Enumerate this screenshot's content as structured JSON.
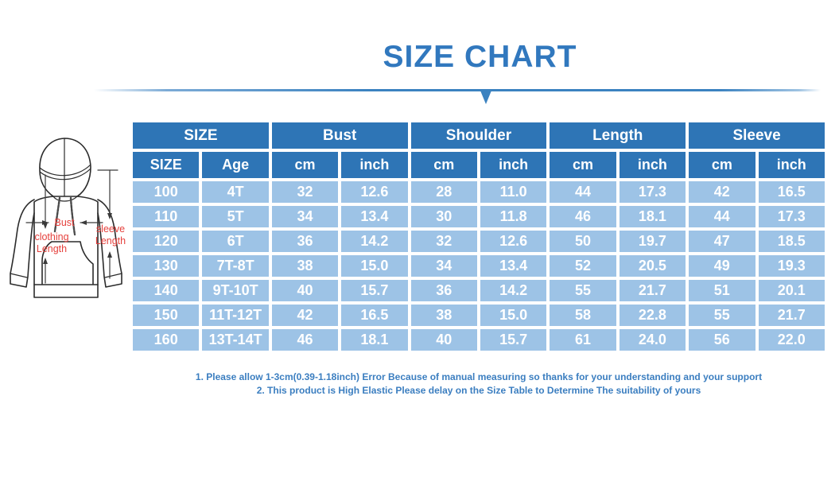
{
  "title": "SIZE CHART",
  "colors": {
    "title_blue": "#3178be",
    "header_blue": "#2e75b6",
    "row_blue": "#9dc3e6",
    "note_blue": "#3b7ec0",
    "label_red": "#e5403c"
  },
  "diagram": {
    "labels": {
      "bust": "Bust",
      "clothing_1": "clothing",
      "clothing_2": "Length",
      "sleeve_1": "sleeve",
      "sleeve_2": "Length"
    }
  },
  "table": {
    "groups": [
      {
        "label": "SIZE",
        "span": 2
      },
      {
        "label": "Bust",
        "span": 2
      },
      {
        "label": "Shoulder",
        "span": 2
      },
      {
        "label": "Length",
        "span": 2
      },
      {
        "label": "Sleeve",
        "span": 2
      }
    ],
    "sub_headers": [
      "SIZE",
      "Age",
      "cm",
      "inch",
      "cm",
      "inch",
      "cm",
      "inch",
      "cm",
      "inch"
    ],
    "rows": [
      [
        "100",
        "4T",
        "32",
        "12.6",
        "28",
        "11.0",
        "44",
        "17.3",
        "42",
        "16.5"
      ],
      [
        "110",
        "5T",
        "34",
        "13.4",
        "30",
        "11.8",
        "46",
        "18.1",
        "44",
        "17.3"
      ],
      [
        "120",
        "6T",
        "36",
        "14.2",
        "32",
        "12.6",
        "50",
        "19.7",
        "47",
        "18.5"
      ],
      [
        "130",
        "7T-8T",
        "38",
        "15.0",
        "34",
        "13.4",
        "52",
        "20.5",
        "49",
        "19.3"
      ],
      [
        "140",
        "9T-10T",
        "40",
        "15.7",
        "36",
        "14.2",
        "55",
        "21.7",
        "51",
        "20.1"
      ],
      [
        "150",
        "11T-12T",
        "42",
        "16.5",
        "38",
        "15.0",
        "58",
        "22.8",
        "55",
        "21.7"
      ],
      [
        "160",
        "13T-14T",
        "46",
        "18.1",
        "40",
        "15.7",
        "61",
        "24.0",
        "56",
        "22.0"
      ]
    ]
  },
  "notes": [
    "1. Please allow 1-3cm(0.39-1.18inch) Error Because of manual measuring so thanks for your understanding and your support",
    "2. This product is High Elastic Please delay on the Size Table to Determine The suitability of yours"
  ],
  "chart_data": {
    "type": "table",
    "title": "SIZE CHART",
    "columns": [
      "SIZE",
      "Age",
      "Bust cm",
      "Bust inch",
      "Shoulder cm",
      "Shoulder inch",
      "Length cm",
      "Length inch",
      "Sleeve cm",
      "Sleeve inch"
    ],
    "rows": [
      [
        "100",
        "4T",
        32,
        12.6,
        28,
        11.0,
        44,
        17.3,
        42,
        16.5
      ],
      [
        "110",
        "5T",
        34,
        13.4,
        30,
        11.8,
        46,
        18.1,
        44,
        17.3
      ],
      [
        "120",
        "6T",
        36,
        14.2,
        32,
        12.6,
        50,
        19.7,
        47,
        18.5
      ],
      [
        "130",
        "7T-8T",
        38,
        15.0,
        34,
        13.4,
        52,
        20.5,
        49,
        19.3
      ],
      [
        "140",
        "9T-10T",
        40,
        15.7,
        36,
        14.2,
        55,
        21.7,
        51,
        20.1
      ],
      [
        "150",
        "11T-12T",
        42,
        16.5,
        38,
        15.0,
        58,
        22.8,
        55,
        21.7
      ],
      [
        "160",
        "13T-14T",
        46,
        18.1,
        40,
        15.7,
        61,
        24.0,
        56,
        22.0
      ]
    ]
  }
}
